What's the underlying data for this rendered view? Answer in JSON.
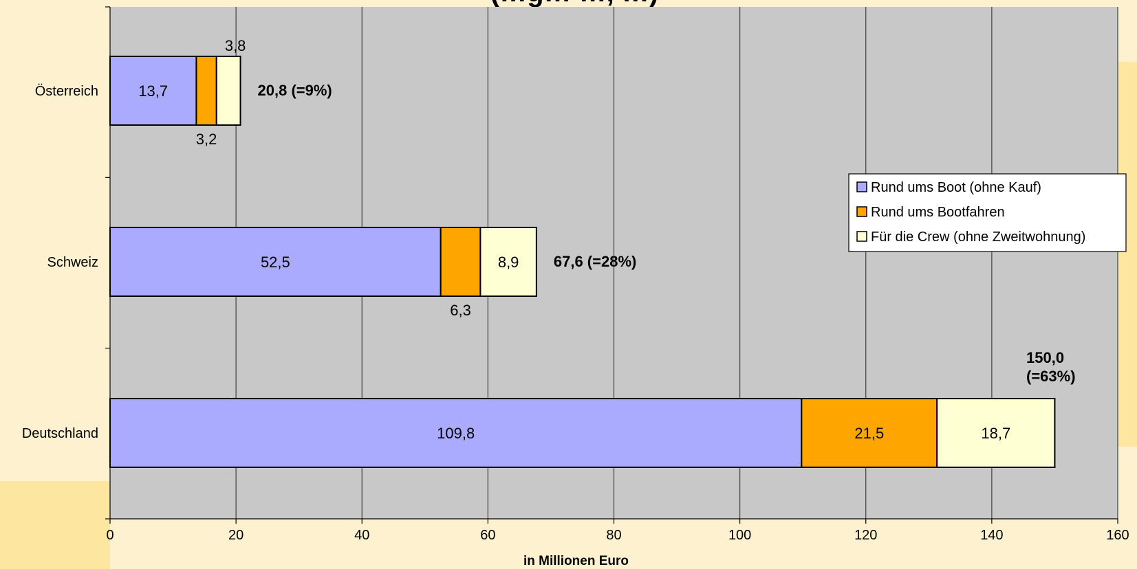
{
  "colors": {
    "page_background": "#fdf1cf",
    "plot_background": "#c8c8c8",
    "gridline": "#404040",
    "series_1": "#aaaaff",
    "series_2": "#ffa500",
    "series_3": "#ffffd4"
  },
  "chart_data": {
    "type": "bar",
    "orientation": "horizontal",
    "stacked": true,
    "title_partial": "(…g… …, …)",
    "xlabel": "in Millionen Euro",
    "xlim": [
      0,
      160
    ],
    "xticks": [
      0,
      20,
      40,
      60,
      80,
      100,
      120,
      140,
      160
    ],
    "grid": true,
    "legend_position": "right",
    "categories": [
      "Österreich",
      "Schweiz",
      "Deutschland"
    ],
    "series": [
      {
        "name": "Rund ums Boot (ohne Kauf)",
        "values": [
          13.7,
          52.5,
          109.8
        ],
        "labels": [
          "13,7",
          "52,5",
          "109,8"
        ]
      },
      {
        "name": "Rund ums Bootfahren",
        "values": [
          3.2,
          6.3,
          21.5
        ],
        "labels": [
          "3,2",
          "6,3",
          "21,5"
        ]
      },
      {
        "name": "Für die Crew (ohne Zweitwohnung)",
        "values": [
          3.8,
          8.9,
          18.7
        ],
        "labels": [
          "3,8",
          "8,9",
          "18,7"
        ]
      }
    ],
    "totals": [
      {
        "value": 20.8,
        "label": "20,8 (=9%)"
      },
      {
        "value": 67.6,
        "label": "67,6 (=28%)"
      },
      {
        "value": 150.0,
        "label": "150,0 (=63%)"
      }
    ]
  }
}
